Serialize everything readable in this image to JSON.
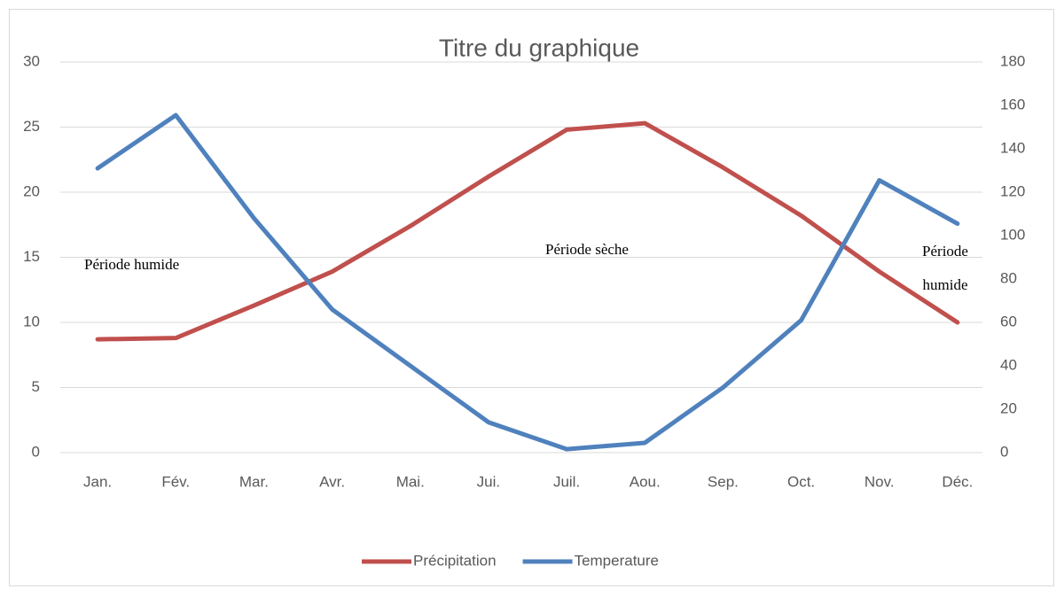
{
  "chart_data": {
    "type": "line",
    "title": "Titre du graphique",
    "categories": [
      "Jan.",
      "Fév.",
      "Mar.",
      "Avr.",
      "Mai.",
      "Jui.",
      "Juil.",
      "Aou.",
      "Sep.",
      "Oct.",
      "Nov.",
      "Déc."
    ],
    "series": [
      {
        "name": "Précipitation",
        "color": "#c0504d",
        "values": [
          8.7,
          8.8,
          11.3,
          13.9,
          17.4,
          21.2,
          24.8,
          25.3,
          21.9,
          18.2,
          13.9,
          10
        ]
      },
      {
        "name": "Temperature",
        "color": "#4f81bd",
        "axis": "y2",
        "values": [
          131,
          155.5,
          108,
          66,
          40,
          14,
          1.6,
          4.5,
          30,
          61,
          125.5,
          105.5
        ]
      }
    ],
    "ylim": [
      0,
      30
    ],
    "yticks": [
      0,
      5,
      10,
      15,
      20,
      25,
      30
    ],
    "y2lim": [
      0,
      180
    ],
    "y2ticks": [
      0,
      20,
      40,
      60,
      80,
      100,
      120,
      140,
      160,
      180
    ],
    "grid": true,
    "legend": "bottom",
    "annotations": [
      [
        "Période humide"
      ],
      [
        "Période sèche"
      ],
      [
        "Période",
        "humide"
      ]
    ]
  }
}
